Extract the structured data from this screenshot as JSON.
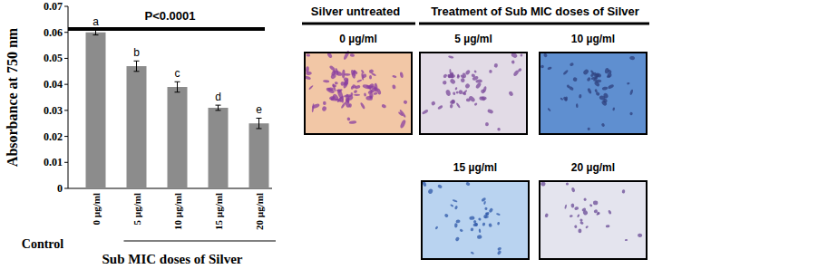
{
  "chart_data": {
    "type": "bar",
    "title": "P<0.0001",
    "y_label": "Absorbance at 750 nm",
    "categories": [
      "0 µg/ml",
      "5 µg/ml",
      "10 µg/ml",
      "15 µg/ml",
      "20 µg/ml"
    ],
    "values": [
      0.06,
      0.047,
      0.039,
      0.031,
      0.025
    ],
    "errors": [
      0.001,
      0.002,
      0.002,
      0.001,
      0.002
    ],
    "group_letters": [
      "a",
      "b",
      "c",
      "d",
      "e"
    ],
    "control_label": "Control",
    "treatment_label": "Sub MIC doses of Silver",
    "color": "#8c8c8c",
    "ylim": [
      0,
      0.07
    ],
    "yticks": [
      0,
      0.01,
      0.02,
      0.03,
      0.04,
      0.05,
      0.06,
      0.07
    ],
    "grid": false
  },
  "panels": {
    "untreated_heading": "Silver untreated",
    "treated_heading": "Treatment of Sub MIC doses of Silver",
    "images": [
      {
        "label": "0 µg/ml"
      },
      {
        "label": "5 µg/ml"
      },
      {
        "label": "10 µg/ml"
      },
      {
        "label": "15 µg/ml"
      },
      {
        "label": "20 µg/ml"
      }
    ]
  }
}
